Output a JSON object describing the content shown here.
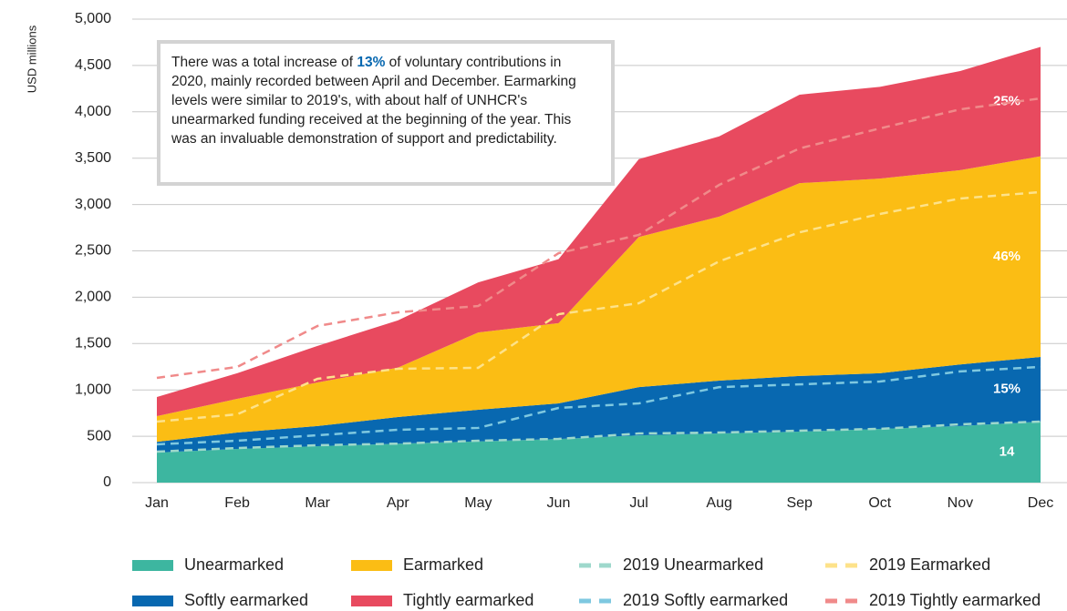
{
  "chart_data": {
    "type": "stacked-area",
    "y_label": "USD millions",
    "categories": [
      "Jan",
      "Feb",
      "Mar",
      "Apr",
      "May",
      "Jun",
      "Jul",
      "Aug",
      "Sep",
      "Oct",
      "Nov",
      "Dec"
    ],
    "ylim": [
      0,
      5000
    ],
    "yticks": [
      0,
      500,
      {
        "value": 1000,
        "label": "1,000"
      },
      {
        "value": 1500,
        "label": "1,500"
      },
      {
        "value": 2000,
        "label": "2,000"
      },
      {
        "value": 2500,
        "label": "2,500"
      },
      {
        "value": 3000,
        "label": "3,000"
      },
      {
        "value": 3500,
        "label": "3,500"
      },
      {
        "value": 4000,
        "label": "4,000"
      },
      {
        "value": 4500,
        "label": "4,500"
      },
      {
        "value": 5000,
        "label": "5,000"
      }
    ],
    "grid": true,
    "series": [
      {
        "name": "Unearmarked",
        "color": "#3db6a0",
        "label": "14",
        "values": [
          324,
          363,
          393,
          420,
          445,
          470,
          510,
          530,
          550,
          580,
          610,
          658
        ]
      },
      {
        "name": "Softly earmarked",
        "color": "#0868b0",
        "label": "15%",
        "values": [
          116,
          177,
          217,
          287,
          341,
          385,
          520,
          570,
          600,
          600,
          665,
          697
        ]
      },
      {
        "name": "Earmarked",
        "color": "#fbbd14",
        "label": "46%",
        "values": [
          277,
          364,
          470,
          533,
          834,
          865,
          1620,
          1770,
          2080,
          2100,
          2095,
          2165
        ]
      },
      {
        "name": "Tightly earmarked",
        "color": "#e84a5f",
        "label": "25%",
        "values": [
          206,
          276,
          395,
          510,
          540,
          690,
          840,
          865,
          955,
          990,
          1070,
          1180
        ]
      }
    ],
    "lines": [
      {
        "name": "2019 Unearmarked",
        "color": "#9ed8cc",
        "values": [
          334,
          373,
          403,
          420,
          452,
          472,
          530,
          540,
          560,
          580,
          629,
          658
        ]
      },
      {
        "name": "2019 Softly earmarked",
        "color": "#7ec8e0",
        "values": [
          79,
          79,
          108,
          150,
          138,
          333,
          325,
          490,
          500,
          510,
          571,
          590
        ]
      },
      {
        "name": "2019 Earmarked",
        "color": "#fde28a",
        "values": [
          245,
          285,
          609,
          658,
          648,
          1012,
          1080,
          1357,
          1640,
          1808,
          1865,
          1886
        ]
      },
      {
        "name": "2019 Tightly earmarked",
        "color": "#f08a8a",
        "values": [
          472,
          511,
          570,
          609,
          667,
          658,
          737,
          825,
          905,
          923,
          962,
          1011
        ]
      }
    ],
    "annotation": {
      "before": "There was a total increase of ",
      "highlight": "13%",
      "after": " of voluntary contributions in 2020, mainly recorded between April and December. Earmarking levels were similar to 2019's, with about half of UNHCR's unearmarked funding received at the beginning of the year. This was an invaluable demonstration of support and predictability."
    }
  }
}
